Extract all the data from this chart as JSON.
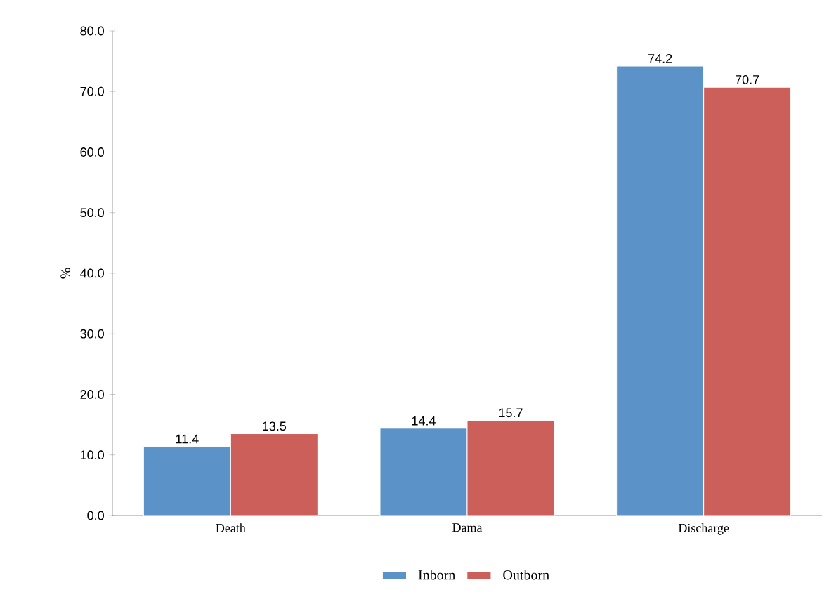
{
  "chart_data": {
    "type": "bar",
    "ylabel": "%",
    "categories": [
      "Death",
      "Dama",
      "Discharge"
    ],
    "series": [
      {
        "name": "Inborn",
        "color": "#5b93c9",
        "values": [
          11.4,
          14.4,
          74.2
        ]
      },
      {
        "name": "Outborn",
        "color": "#cd5f5a",
        "values": [
          13.5,
          15.7,
          70.7
        ]
      }
    ],
    "ylim": [
      0,
      80
    ],
    "yticks": [
      {
        "value": 0,
        "label": "0.0"
      },
      {
        "value": 10,
        "label": "10.0"
      },
      {
        "value": 20,
        "label": "20.0"
      },
      {
        "value": 30,
        "label": "30.0"
      },
      {
        "value": 40,
        "label": "40.0"
      },
      {
        "value": 50,
        "label": "50.0"
      },
      {
        "value": 60,
        "label": "60.0"
      },
      {
        "value": 70,
        "label": "70.0"
      },
      {
        "value": 80,
        "label": "80.0"
      }
    ],
    "data_labels": true,
    "legend": "bottom"
  }
}
